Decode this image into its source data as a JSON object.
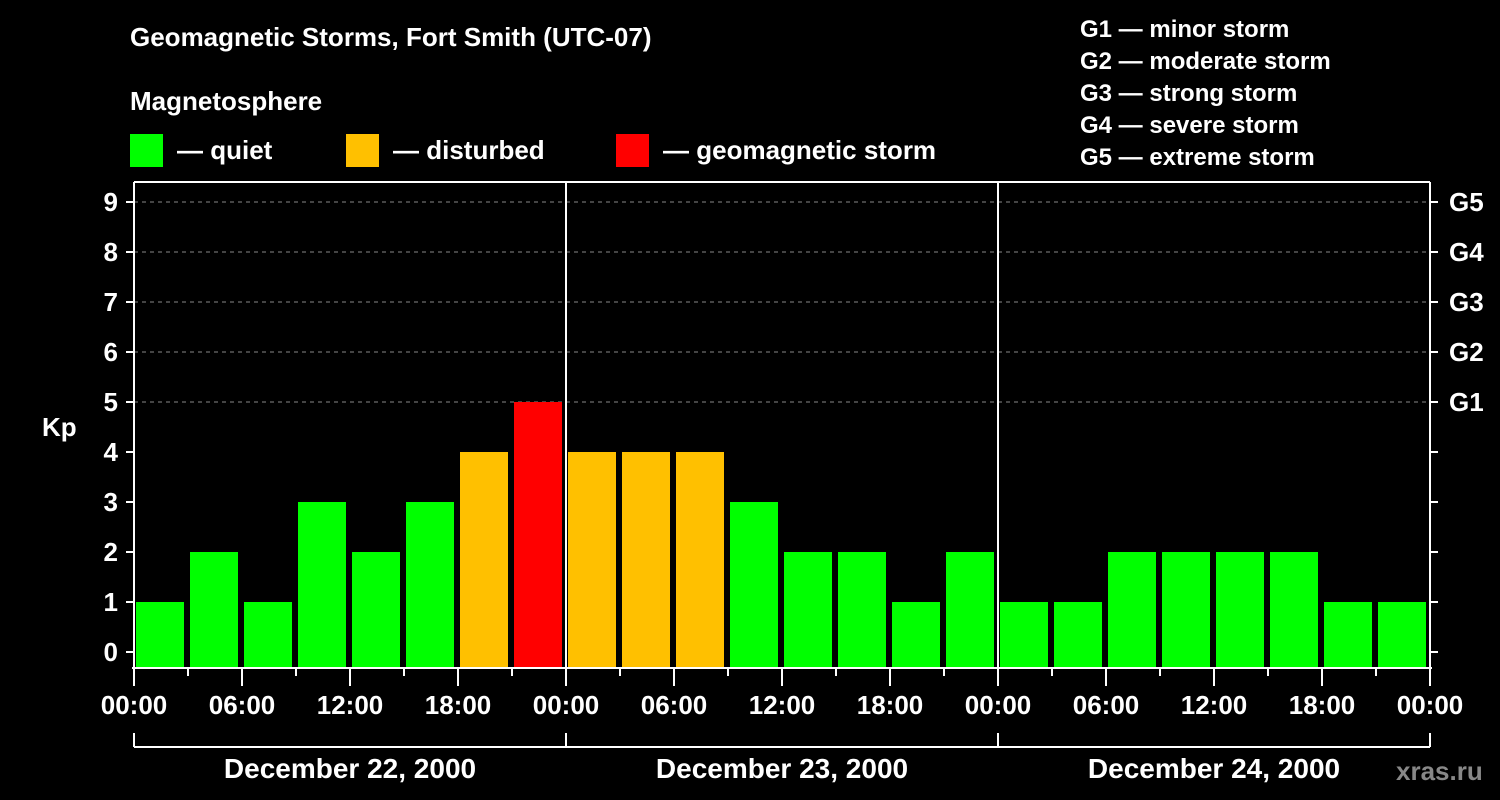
{
  "title": "Geomagnetic Storms, Fort Smith (UTC-07)",
  "subtitle": "Magnetosphere",
  "legend": [
    {
      "label": "— quiet",
      "color": "#00ff00"
    },
    {
      "label": "— disturbed",
      "color": "#ffc000"
    },
    {
      "label": "— geomagnetic storm",
      "color": "#ff0000"
    }
  ],
  "g_legend": [
    "G1 — minor storm",
    "G2 — moderate storm",
    "G3 — strong storm",
    "G4 — severe storm",
    "G5 — extreme storm"
  ],
  "watermark": "xras.ru",
  "chart_data": {
    "type": "bar",
    "title": "Geomagnetic Storms, Fort Smith (UTC-07)",
    "xlabel": "",
    "ylabel": "Kp",
    "ylim": [
      0,
      9
    ],
    "yticks": [
      0,
      1,
      2,
      3,
      4,
      5,
      6,
      7,
      8,
      9
    ],
    "right_axis_labels": [
      {
        "kp": 5,
        "label": "G1"
      },
      {
        "kp": 6,
        "label": "G2"
      },
      {
        "kp": 7,
        "label": "G3"
      },
      {
        "kp": 8,
        "label": "G4"
      },
      {
        "kp": 9,
        "label": "G5"
      }
    ],
    "xtick_labels": [
      "00:00",
      "06:00",
      "12:00",
      "18:00",
      "00:00",
      "06:00",
      "12:00",
      "18:00",
      "00:00",
      "06:00",
      "12:00",
      "18:00",
      "00:00"
    ],
    "dates": [
      "December 22, 2000",
      "December 23, 2000",
      "December 24, 2000"
    ],
    "grid": "dashed horizontal at Kp 5-9",
    "categories": [
      "Dec 22 00:00",
      "Dec 22 03:00",
      "Dec 22 06:00",
      "Dec 22 09:00",
      "Dec 22 12:00",
      "Dec 22 15:00",
      "Dec 22 18:00",
      "Dec 22 21:00",
      "Dec 23 00:00",
      "Dec 23 03:00",
      "Dec 23 06:00",
      "Dec 23 09:00",
      "Dec 23 12:00",
      "Dec 23 15:00",
      "Dec 23 18:00",
      "Dec 23 21:00",
      "Dec 24 00:00",
      "Dec 24 03:00",
      "Dec 24 06:00",
      "Dec 24 09:00",
      "Dec 24 12:00",
      "Dec 24 15:00",
      "Dec 24 18:00",
      "Dec 24 21:00"
    ],
    "values": [
      1,
      2,
      1,
      3,
      2,
      3,
      4,
      5,
      4,
      4,
      4,
      3,
      2,
      2,
      1,
      2,
      1,
      1,
      2,
      2,
      2,
      2,
      1,
      1
    ],
    "colors": {
      "quiet": "#00ff00",
      "disturbed": "#ffc000",
      "storm": "#ff0000"
    }
  }
}
